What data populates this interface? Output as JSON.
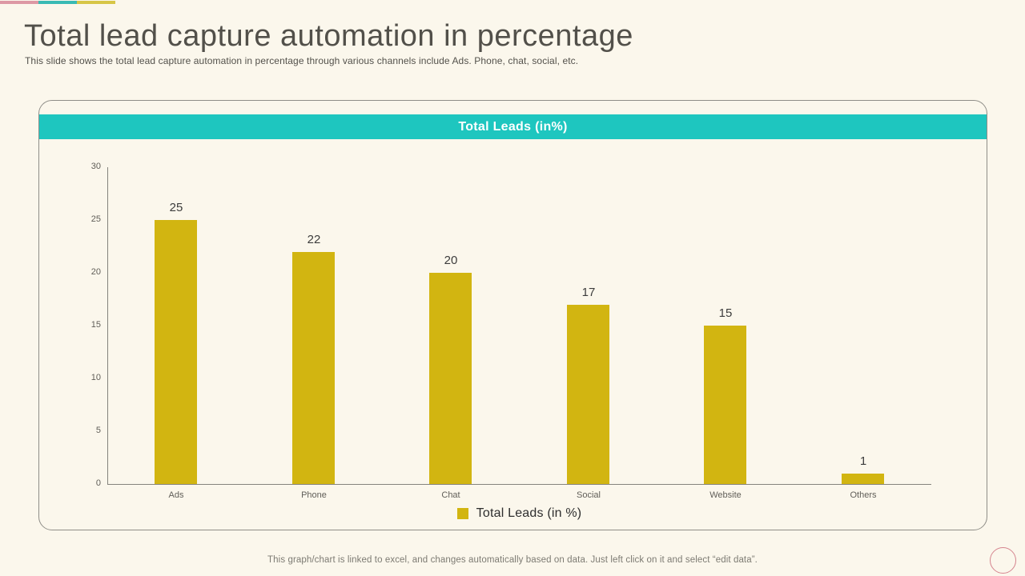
{
  "slide": {
    "title": "Total lead capture automation in percentage",
    "subtitle": "This slide shows the total lead capture automation in percentage through various channels include Ads. Phone, chat, social, etc.",
    "footer": "This graph/chart is linked to excel, and changes automatically based on data. Just left click on it and select “edit data”.",
    "accent_colors": [
      "#dd98a4",
      "#39bab4",
      "#d7c647"
    ],
    "circle_color": "#d5848e"
  },
  "chart": {
    "header": "Total Leads (in%)",
    "header_bg": "#1ec6bf",
    "legend_label": "Total Leads (in %)"
  },
  "chart_data": {
    "type": "bar",
    "title": "Total Leads (in%)",
    "categories": [
      "Ads",
      "Phone",
      "Chat",
      "Social",
      "Website",
      "Others"
    ],
    "values": [
      25,
      22,
      20,
      17,
      15,
      1
    ],
    "series_name": "Total Leads (in %)",
    "xlabel": "",
    "ylabel": "",
    "ylim": [
      0,
      30
    ],
    "yticks": [
      0,
      5,
      10,
      15,
      20,
      25,
      30
    ],
    "grid": false,
    "legend_position": "bottom",
    "bar_color": "#d2b511"
  }
}
